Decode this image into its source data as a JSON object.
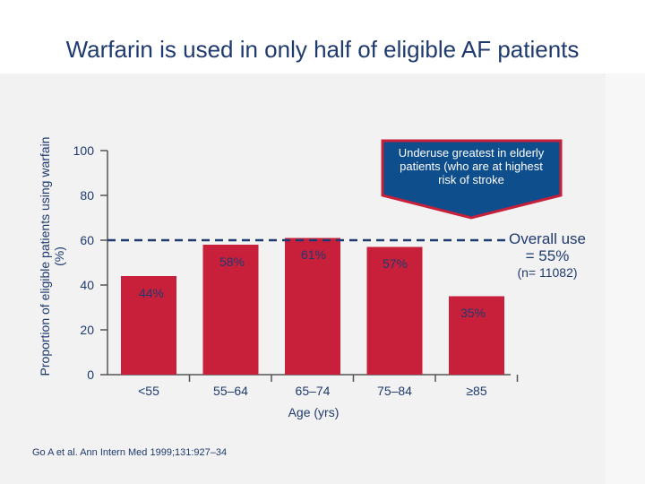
{
  "slide": {
    "title": "Warfarin is used in only half of eligible AF patients",
    "source": "Go A et al. Ann Intern Med 1999;131:927–34"
  },
  "callout": {
    "text_lines": [
      "Underuse greatest in elderly",
      "patients (who are at highest",
      "risk of  stroke"
    ]
  },
  "overall": {
    "line1": "Overall use",
    "line2": "= 55%",
    "line3": "(n= 11082)"
  },
  "colors": {
    "bar": "#c8203a",
    "text": "#1f3a6e",
    "callout_fill": "#0e4e8c",
    "callout_border": "#c8203a"
  },
  "chart_data": {
    "type": "bar",
    "categories": [
      "<55",
      "55–64",
      "65–74",
      "75–84",
      "≥85"
    ],
    "values": [
      44,
      58,
      61,
      57,
      35
    ],
    "data_labels": [
      "44%",
      "58%",
      "61%",
      "57%",
      "35%"
    ],
    "xlabel": "Age (yrs)",
    "ylabel": "Proportion of eligible patients using warfain (%)",
    "ylim": [
      0,
      100
    ],
    "yticks": [
      0,
      20,
      40,
      60,
      80,
      100
    ],
    "reference_line": 60
  }
}
